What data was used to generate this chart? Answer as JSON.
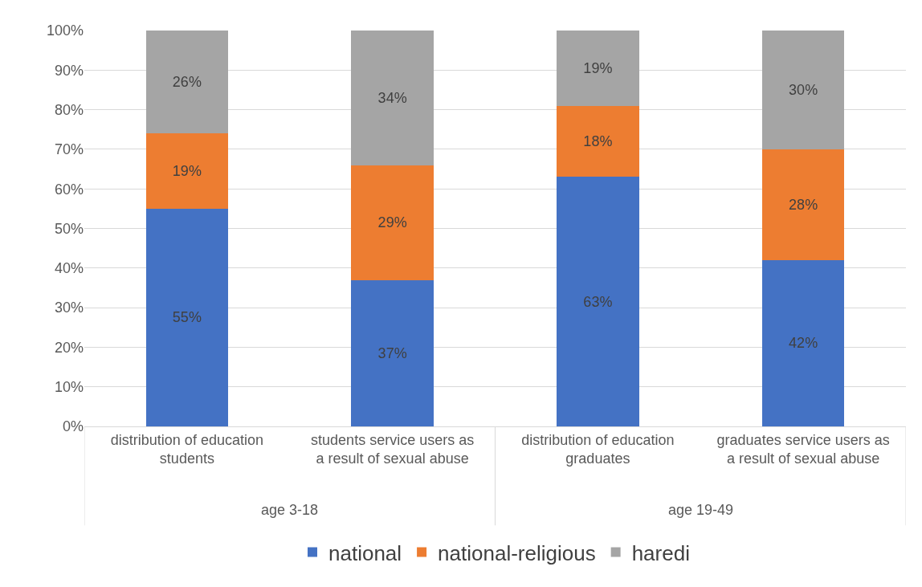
{
  "chart_data": {
    "type": "bar",
    "stacked": true,
    "categories": [
      "distribution of education students",
      "students service users as a result of sexual abuse",
      "distribution of education graduates",
      "graduates service users as a result of sexual abuse"
    ],
    "series": [
      {
        "name": "national",
        "color": "#4472c4",
        "values": [
          55,
          37,
          63,
          42
        ],
        "value_labels": [
          "55%",
          "37%",
          "63%",
          "42%"
        ]
      },
      {
        "name": "national-religious",
        "color": "#ed7d31",
        "values": [
          19,
          29,
          18,
          28
        ],
        "value_labels": [
          "19%",
          "29%",
          "18%",
          "28%"
        ]
      },
      {
        "name": "haredi",
        "color": "#a5a5a5",
        "values": [
          26,
          34,
          19,
          30
        ],
        "value_labels": [
          "26%",
          "34%",
          "19%",
          "30%"
        ]
      }
    ],
    "ylim": [
      0,
      100
    ],
    "yticks": [
      {
        "value": 0,
        "label": "0%"
      },
      {
        "value": 10,
        "label": "10%"
      },
      {
        "value": 20,
        "label": "20%"
      },
      {
        "value": 30,
        "label": "30%"
      },
      {
        "value": 40,
        "label": "40%"
      },
      {
        "value": 50,
        "label": "50%"
      },
      {
        "value": 60,
        "label": "60%"
      },
      {
        "value": 70,
        "label": "70%"
      },
      {
        "value": 80,
        "label": "80%"
      },
      {
        "value": 90,
        "label": "90%"
      },
      {
        "value": 100,
        "label": "100%"
      }
    ],
    "annotations": [
      "age 3-18",
      "age 19-49"
    ],
    "grid": "y",
    "legend": "bottom"
  }
}
